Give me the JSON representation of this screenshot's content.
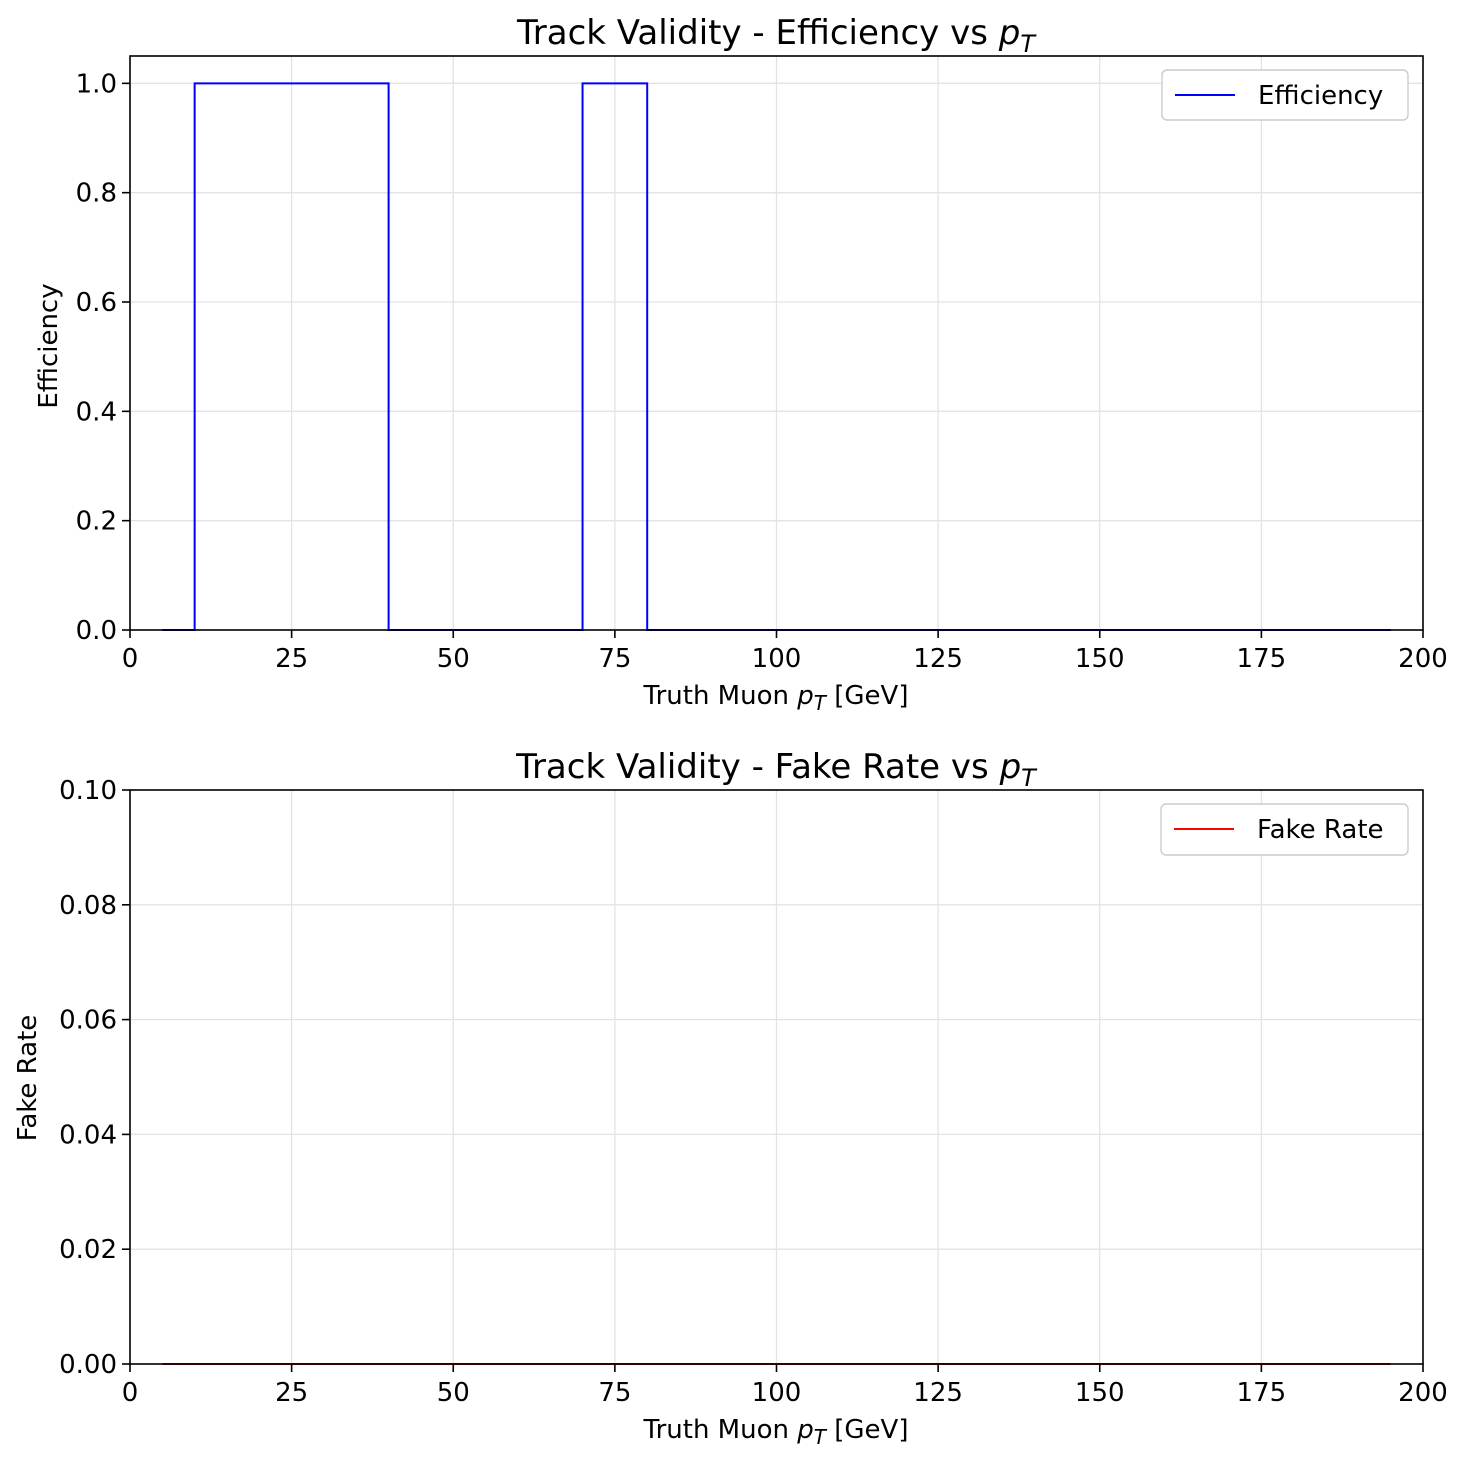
{
  "colors": {
    "efficiency": "#0000ff",
    "fake_rate": "#ff0000",
    "grid": "#e3e3e3"
  },
  "chart_data": [
    {
      "type": "line",
      "drawstyle": "steps",
      "title": "Track Validity - Efficiency vs",
      "title_math": {
        "base": "p",
        "sub": "T"
      },
      "xlabel": "Truth Muon",
      "xlabel_math": {
        "base": "p",
        "sub": "T"
      },
      "xlabel_unit": "[GeV]",
      "ylabel": "Efficiency",
      "xlim": [
        0,
        200
      ],
      "ylim": [
        0,
        1.05
      ],
      "xticks": [
        0,
        25,
        50,
        75,
        100,
        125,
        150,
        175,
        200
      ],
      "xtick_labels": [
        "0",
        "25",
        "50",
        "75",
        "100",
        "125",
        "150",
        "175",
        "200"
      ],
      "yticks": [
        0.0,
        0.2,
        0.4,
        0.6,
        0.8,
        1.0
      ],
      "ytick_labels": [
        "0.0",
        "0.2",
        "0.4",
        "0.6",
        "0.8",
        "1.0"
      ],
      "grid": true,
      "legend_position": "top-right",
      "bin_edges": [
        5,
        10,
        20,
        30,
        40,
        50,
        60,
        70,
        80,
        90,
        100,
        110,
        120,
        130,
        140,
        150,
        160,
        170,
        180,
        190,
        195
      ],
      "series": [
        {
          "name": "Efficiency",
          "color": "#0000ff",
          "values": [
            0,
            1,
            1,
            1,
            0,
            0,
            0,
            1,
            0,
            0,
            0,
            0,
            0,
            0,
            0,
            0,
            0,
            0,
            0,
            0
          ]
        }
      ]
    },
    {
      "type": "line",
      "drawstyle": "steps",
      "title": "Track Validity - Fake Rate vs",
      "title_math": {
        "base": "p",
        "sub": "T"
      },
      "xlabel": "Truth Muon",
      "xlabel_math": {
        "base": "p",
        "sub": "T"
      },
      "xlabel_unit": "[GeV]",
      "ylabel": "Fake Rate",
      "xlim": [
        0,
        200
      ],
      "ylim": [
        0,
        0.1
      ],
      "xticks": [
        0,
        25,
        50,
        75,
        100,
        125,
        150,
        175,
        200
      ],
      "xtick_labels": [
        "0",
        "25",
        "50",
        "75",
        "100",
        "125",
        "150",
        "175",
        "200"
      ],
      "yticks": [
        0.0,
        0.02,
        0.04,
        0.06,
        0.08,
        0.1
      ],
      "ytick_labels": [
        "0.00",
        "0.02",
        "0.04",
        "0.06",
        "0.08",
        "0.10"
      ],
      "grid": true,
      "legend_position": "top-right",
      "bin_edges": [
        5,
        195
      ],
      "series": [
        {
          "name": "Fake Rate",
          "color": "#ff0000",
          "values": [
            0
          ]
        }
      ]
    }
  ]
}
